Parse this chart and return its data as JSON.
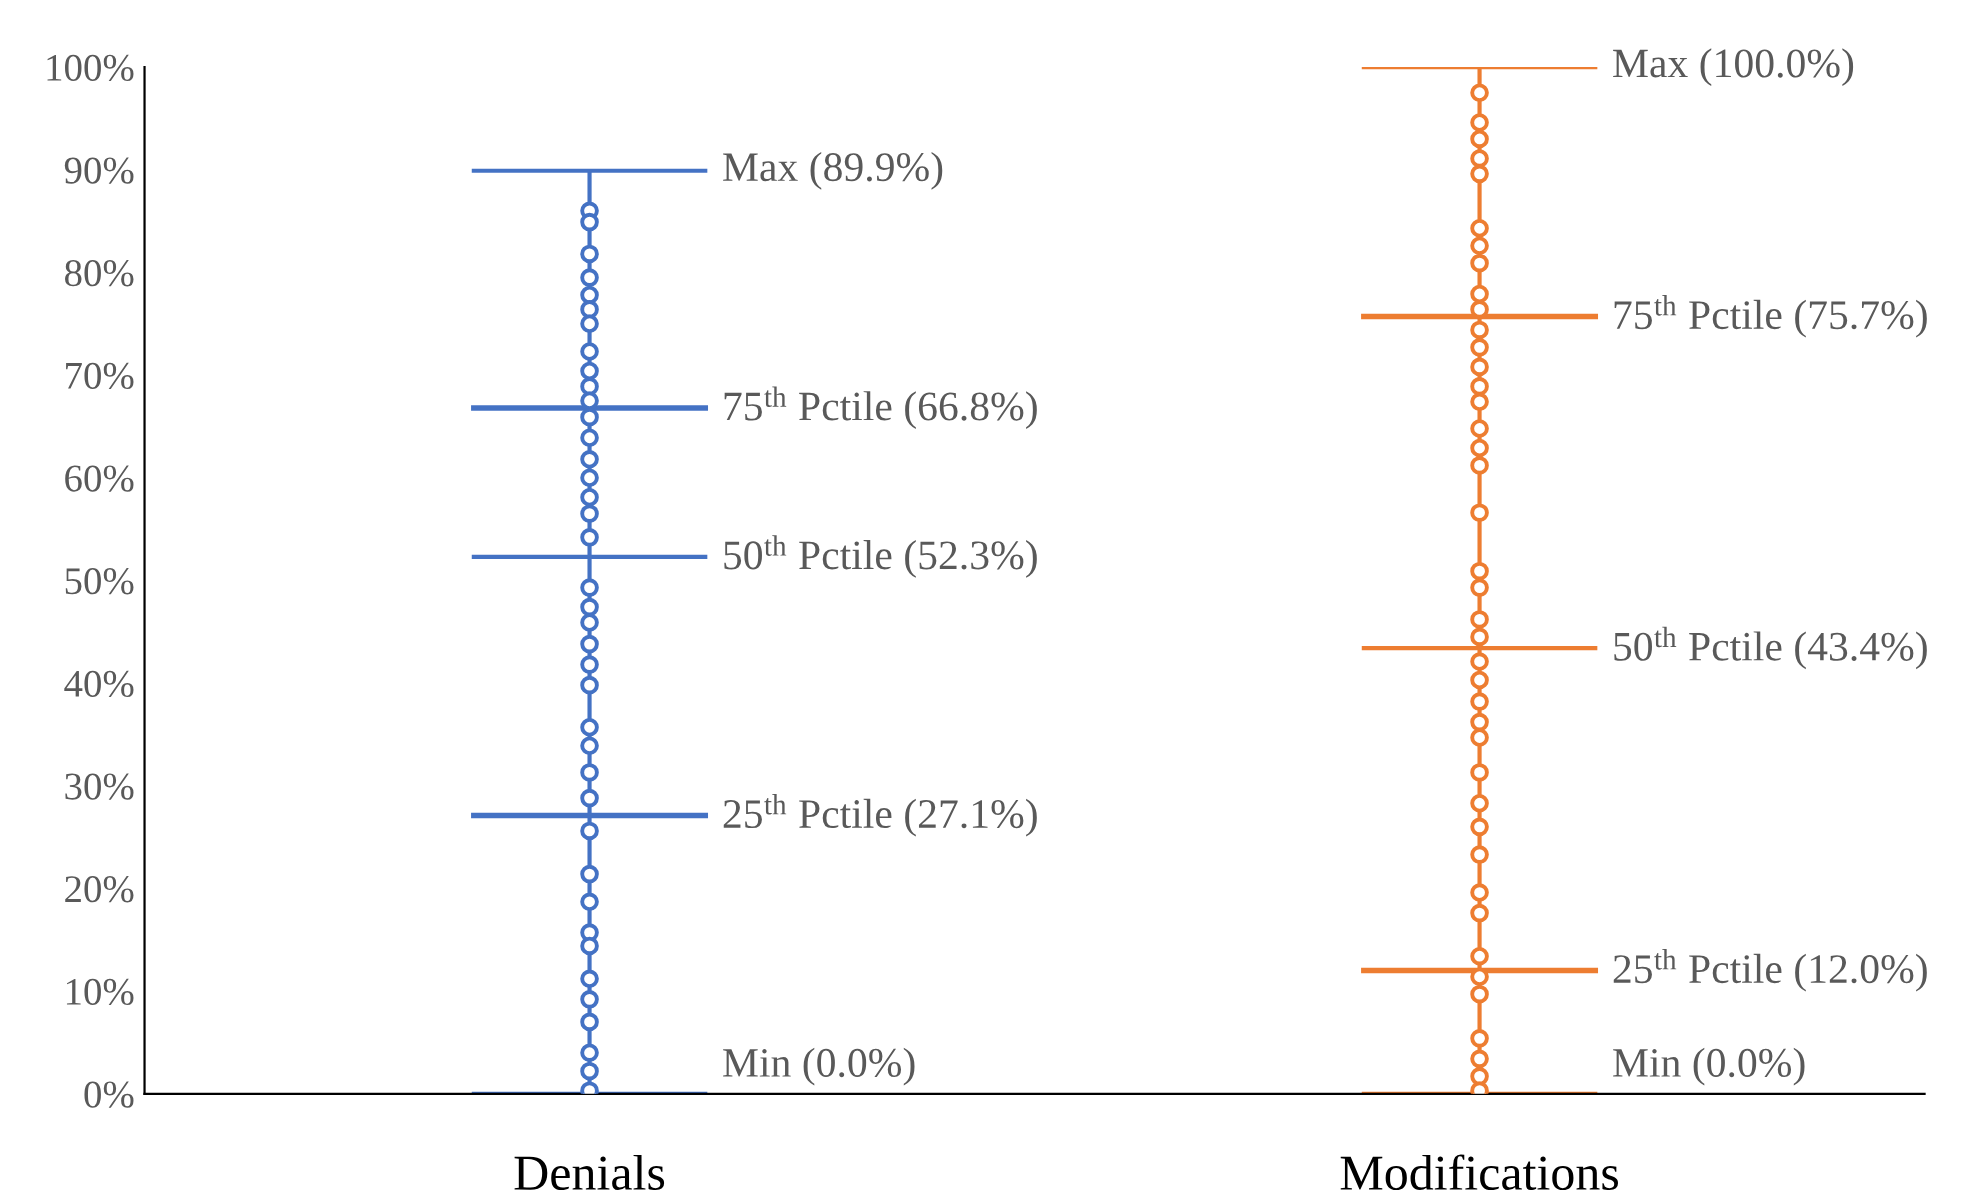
{
  "chart_data": {
    "type": "box",
    "categories": [
      "Denials",
      "Modifications"
    ],
    "colors": [
      "#4472c4",
      "#ed7d31"
    ],
    "boxes": [
      {
        "low": 0.0,
        "q1": 27.1,
        "median": 52.3,
        "q3": 66.8,
        "high": 89.9
      },
      {
        "low": 0.0,
        "q1": 12.0,
        "median": 43.4,
        "q3": 75.7,
        "high": 100.0
      }
    ],
    "series": [
      {
        "type": "scatter",
        "color": "#4472c4",
        "x": [
          "Denials",
          "Denials",
          "Denials",
          "Denials",
          "Denials",
          "Denials",
          "Denials",
          "Denials",
          "Denials",
          "Denials",
          "Denials",
          "Denials",
          "Denials",
          "Denials",
          "Denials",
          "Denials",
          "Denials",
          "Denials",
          "Denials",
          "Denials",
          "Denials",
          "Denials",
          "Denials",
          "Denials",
          "Denials",
          "Denials",
          "Denials",
          "Denials",
          "Denials",
          "Denials",
          "Denials",
          "Denials",
          "Denials",
          "Denials",
          "Denials",
          "Denials",
          "Denials",
          "Denials",
          "Denials"
        ],
        "values": [
          86.0,
          84.9,
          81.8,
          79.5,
          77.8,
          76.4,
          75.0,
          72.3,
          70.4,
          68.9,
          67.5,
          65.9,
          63.9,
          61.8,
          60.0,
          58.1,
          56.5,
          54.2,
          49.3,
          47.4,
          45.9,
          43.8,
          41.8,
          39.8,
          35.7,
          33.9,
          31.3,
          28.8,
          25.6,
          21.4,
          18.7,
          15.7,
          14.4,
          11.2,
          9.2,
          7.0,
          4.0,
          2.2,
          0.3
        ]
      },
      {
        "type": "scatter",
        "color": "#ed7d31",
        "x": [
          "Modifications",
          "Modifications",
          "Modifications",
          "Modifications",
          "Modifications",
          "Modifications",
          "Modifications",
          "Modifications",
          "Modifications",
          "Modifications",
          "Modifications",
          "Modifications",
          "Modifications",
          "Modifications",
          "Modifications",
          "Modifications",
          "Modifications",
          "Modifications",
          "Modifications",
          "Modifications",
          "Modifications",
          "Modifications",
          "Modifications",
          "Modifications",
          "Modifications",
          "Modifications",
          "Modifications",
          "Modifications",
          "Modifications",
          "Modifications",
          "Modifications",
          "Modifications",
          "Modifications",
          "Modifications",
          "Modifications",
          "Modifications",
          "Modifications",
          "Modifications",
          "Modifications",
          "Modifications",
          "Modifications"
        ],
        "values": [
          97.5,
          94.6,
          93.0,
          91.1,
          89.6,
          84.3,
          82.6,
          80.9,
          77.9,
          76.4,
          74.4,
          72.7,
          70.8,
          68.9,
          67.4,
          64.8,
          62.9,
          61.2,
          56.6,
          50.9,
          49.3,
          46.2,
          44.5,
          42.1,
          40.3,
          38.2,
          36.2,
          34.7,
          31.3,
          28.3,
          26.0,
          23.3,
          19.6,
          17.6,
          13.4,
          11.4,
          9.7,
          5.4,
          3.4,
          1.7,
          0.3
        ]
      }
    ],
    "marker": "circle",
    "ylim": [
      0,
      100
    ],
    "yticks": [
      {
        "value": 0,
        "label": "0%"
      },
      {
        "value": 10,
        "label": "10%"
      },
      {
        "value": 20,
        "label": "20%"
      },
      {
        "value": 30,
        "label": "30%"
      },
      {
        "value": 40,
        "label": "40%"
      },
      {
        "value": 50,
        "label": "50%"
      },
      {
        "value": 60,
        "label": "60%"
      },
      {
        "value": 70,
        "label": "70%"
      },
      {
        "value": 80,
        "label": "80%"
      },
      {
        "value": 90,
        "label": "90%"
      },
      {
        "value": 100,
        "label": "100%"
      }
    ],
    "grid": false,
    "annotations": [
      "Max (89.9%)",
      "75$^{th}$ Pctile (66.8%)",
      "50$^{th}$ Pctile (52.3%)",
      "25$^{th}$ Pctile (27.1%)",
      "Min (0.0%)",
      "Max (100.0%)",
      "75$^{th}$ Pctile (75.7%)",
      "50$^{th}$ Pctile (43.4%)",
      "25$^{th}$ Pctile (12.0%)",
      "Min (0.0%)"
    ]
  }
}
